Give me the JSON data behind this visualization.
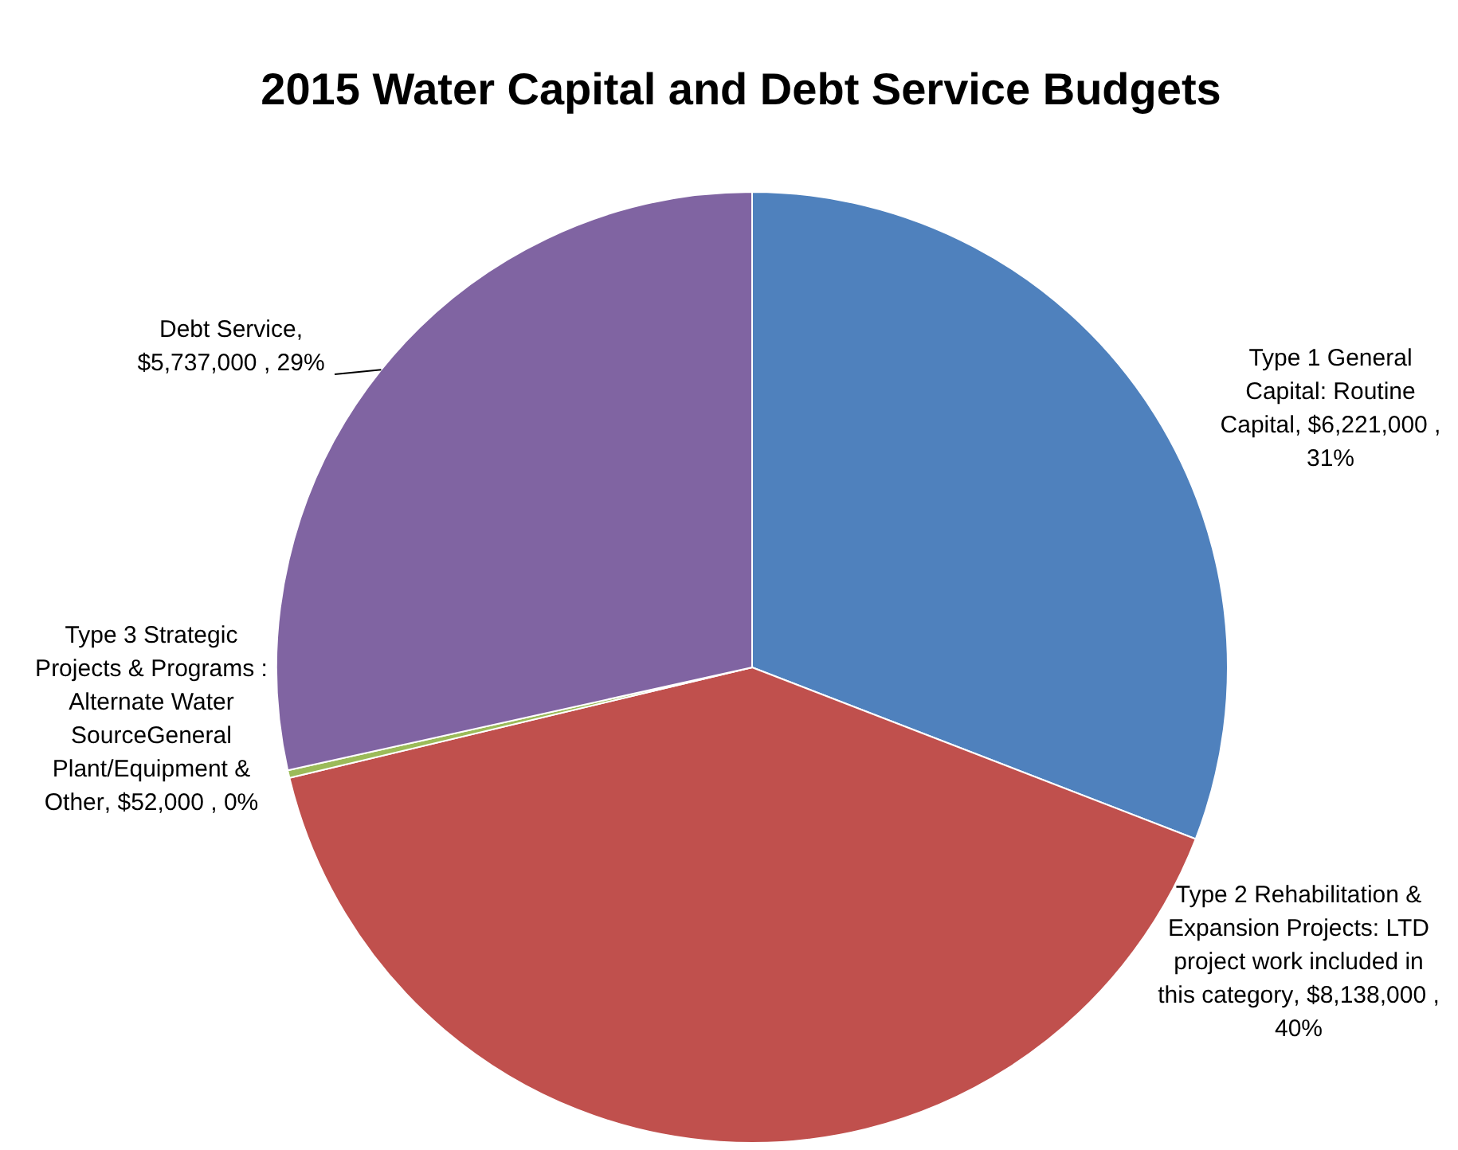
{
  "chart_data": {
    "type": "pie",
    "title": "2015 Water Capital and Debt Service Budgets",
    "categories": [
      "Type 1 General Capital: Routine Capital",
      "Type 2 Rehabilitation & Expansion Projects: LTD project work included in this category",
      "Type 3 Strategic Projects & Programs : Alternate Water SourceGeneral Plant/Equipment & Other",
      "Debt Service"
    ],
    "values": [
      6221000,
      8138000,
      52000,
      5737000
    ],
    "colors": [
      "#4f81bd",
      "#c0504d",
      "#9bbb59",
      "#8064a2"
    ],
    "value_labels": [
      ",  $6,221,000 , 31%",
      ",  $8,138,000 , 40%",
      ", $52,000 , 0%",
      ", $5,737,000 , 29%"
    ],
    "legend": false
  }
}
